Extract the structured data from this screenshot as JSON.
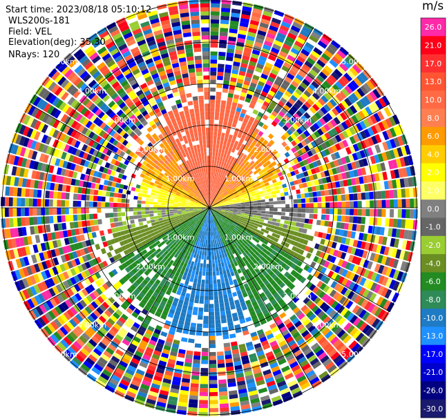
{
  "info": {
    "start_time": "Start time: 2023/08/18 05:10:12",
    "instrument": "WLS200s-181",
    "field": "Field: VEL",
    "elevation": "Elevation(deg): 35.30",
    "nrays": "NRays: 120"
  },
  "chart_data": {
    "type": "heatmap",
    "projection": "polar",
    "rays": 120,
    "range_rings_km": [
      1.0,
      2.0,
      3.0,
      4.0,
      5.0
    ],
    "range_ring_labels": [
      "1.00km",
      "2.00km",
      "3.00km",
      "4.00km",
      "5.00km"
    ],
    "colorbar": {
      "unit": "m/s",
      "ticks": [
        "26.0",
        "21.0",
        "17.0",
        "13.0",
        "10.0",
        "8.0",
        "6.0",
        "4.0",
        "2.0",
        "1.0",
        "0.0",
        "-1.0",
        "-2.0",
        "-4.0",
        "-6.0",
        "-8.0",
        "-10.0",
        "-13.0",
        "-17.0",
        "-21.0",
        "-26.0",
        "-30.0"
      ],
      "colors": [
        "#ff2aa8",
        "#ff0018",
        "#ff3030",
        "#ff5533",
        "#ff6a45",
        "#ff7f50",
        "#ff9a00",
        "#ffcc00",
        "#ffff00",
        "#ffff66",
        "#808080",
        "#666666",
        "#9acd32",
        "#6b8e23",
        "#228b22",
        "#2e8b57",
        "#1e7bc4",
        "#1e90ff",
        "#0000ff",
        "#0000cd",
        "#000080",
        "#1a1a6e"
      ]
    }
  }
}
